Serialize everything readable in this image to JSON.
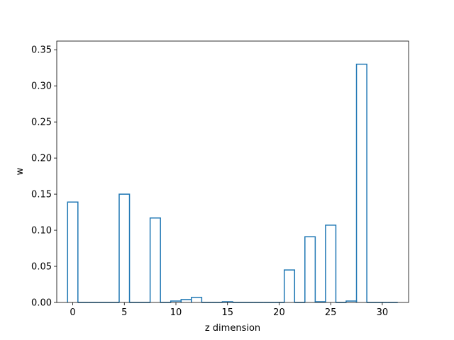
{
  "chart_data": {
    "type": "bar",
    "style": "step-outline histogram",
    "xlabel": "z dimension",
    "ylabel": "w",
    "xlim": [
      -1.55,
      32.55
    ],
    "ylim": [
      0,
      0.362
    ],
    "x_ticks": [
      0,
      5,
      10,
      15,
      20,
      25,
      30
    ],
    "y_ticks": [
      0.0,
      0.05,
      0.1,
      0.15,
      0.2,
      0.25,
      0.3,
      0.35
    ],
    "y_tick_labels": [
      "0.00",
      "0.05",
      "0.10",
      "0.15",
      "0.20",
      "0.25",
      "0.30",
      "0.35"
    ],
    "x": [
      0,
      1,
      2,
      3,
      4,
      5,
      6,
      7,
      8,
      9,
      10,
      11,
      12,
      13,
      14,
      15,
      16,
      17,
      18,
      19,
      20,
      21,
      22,
      23,
      24,
      25,
      26,
      27,
      28,
      29,
      30,
      31
    ],
    "values": [
      0.139,
      0.0,
      0.0,
      0.0,
      0.0,
      0.15,
      0.0,
      0.0,
      0.117,
      0.0,
      0.002,
      0.004,
      0.007,
      0.0,
      0.0,
      0.001,
      0.0,
      0.0,
      0.0,
      0.0,
      0.0,
      0.045,
      0.0,
      0.091,
      0.001,
      0.107,
      0.0,
      0.002,
      0.33,
      0.0,
      0.0,
      0.0
    ],
    "line_color": "#1f77b4",
    "grid": false,
    "legend": "none"
  }
}
